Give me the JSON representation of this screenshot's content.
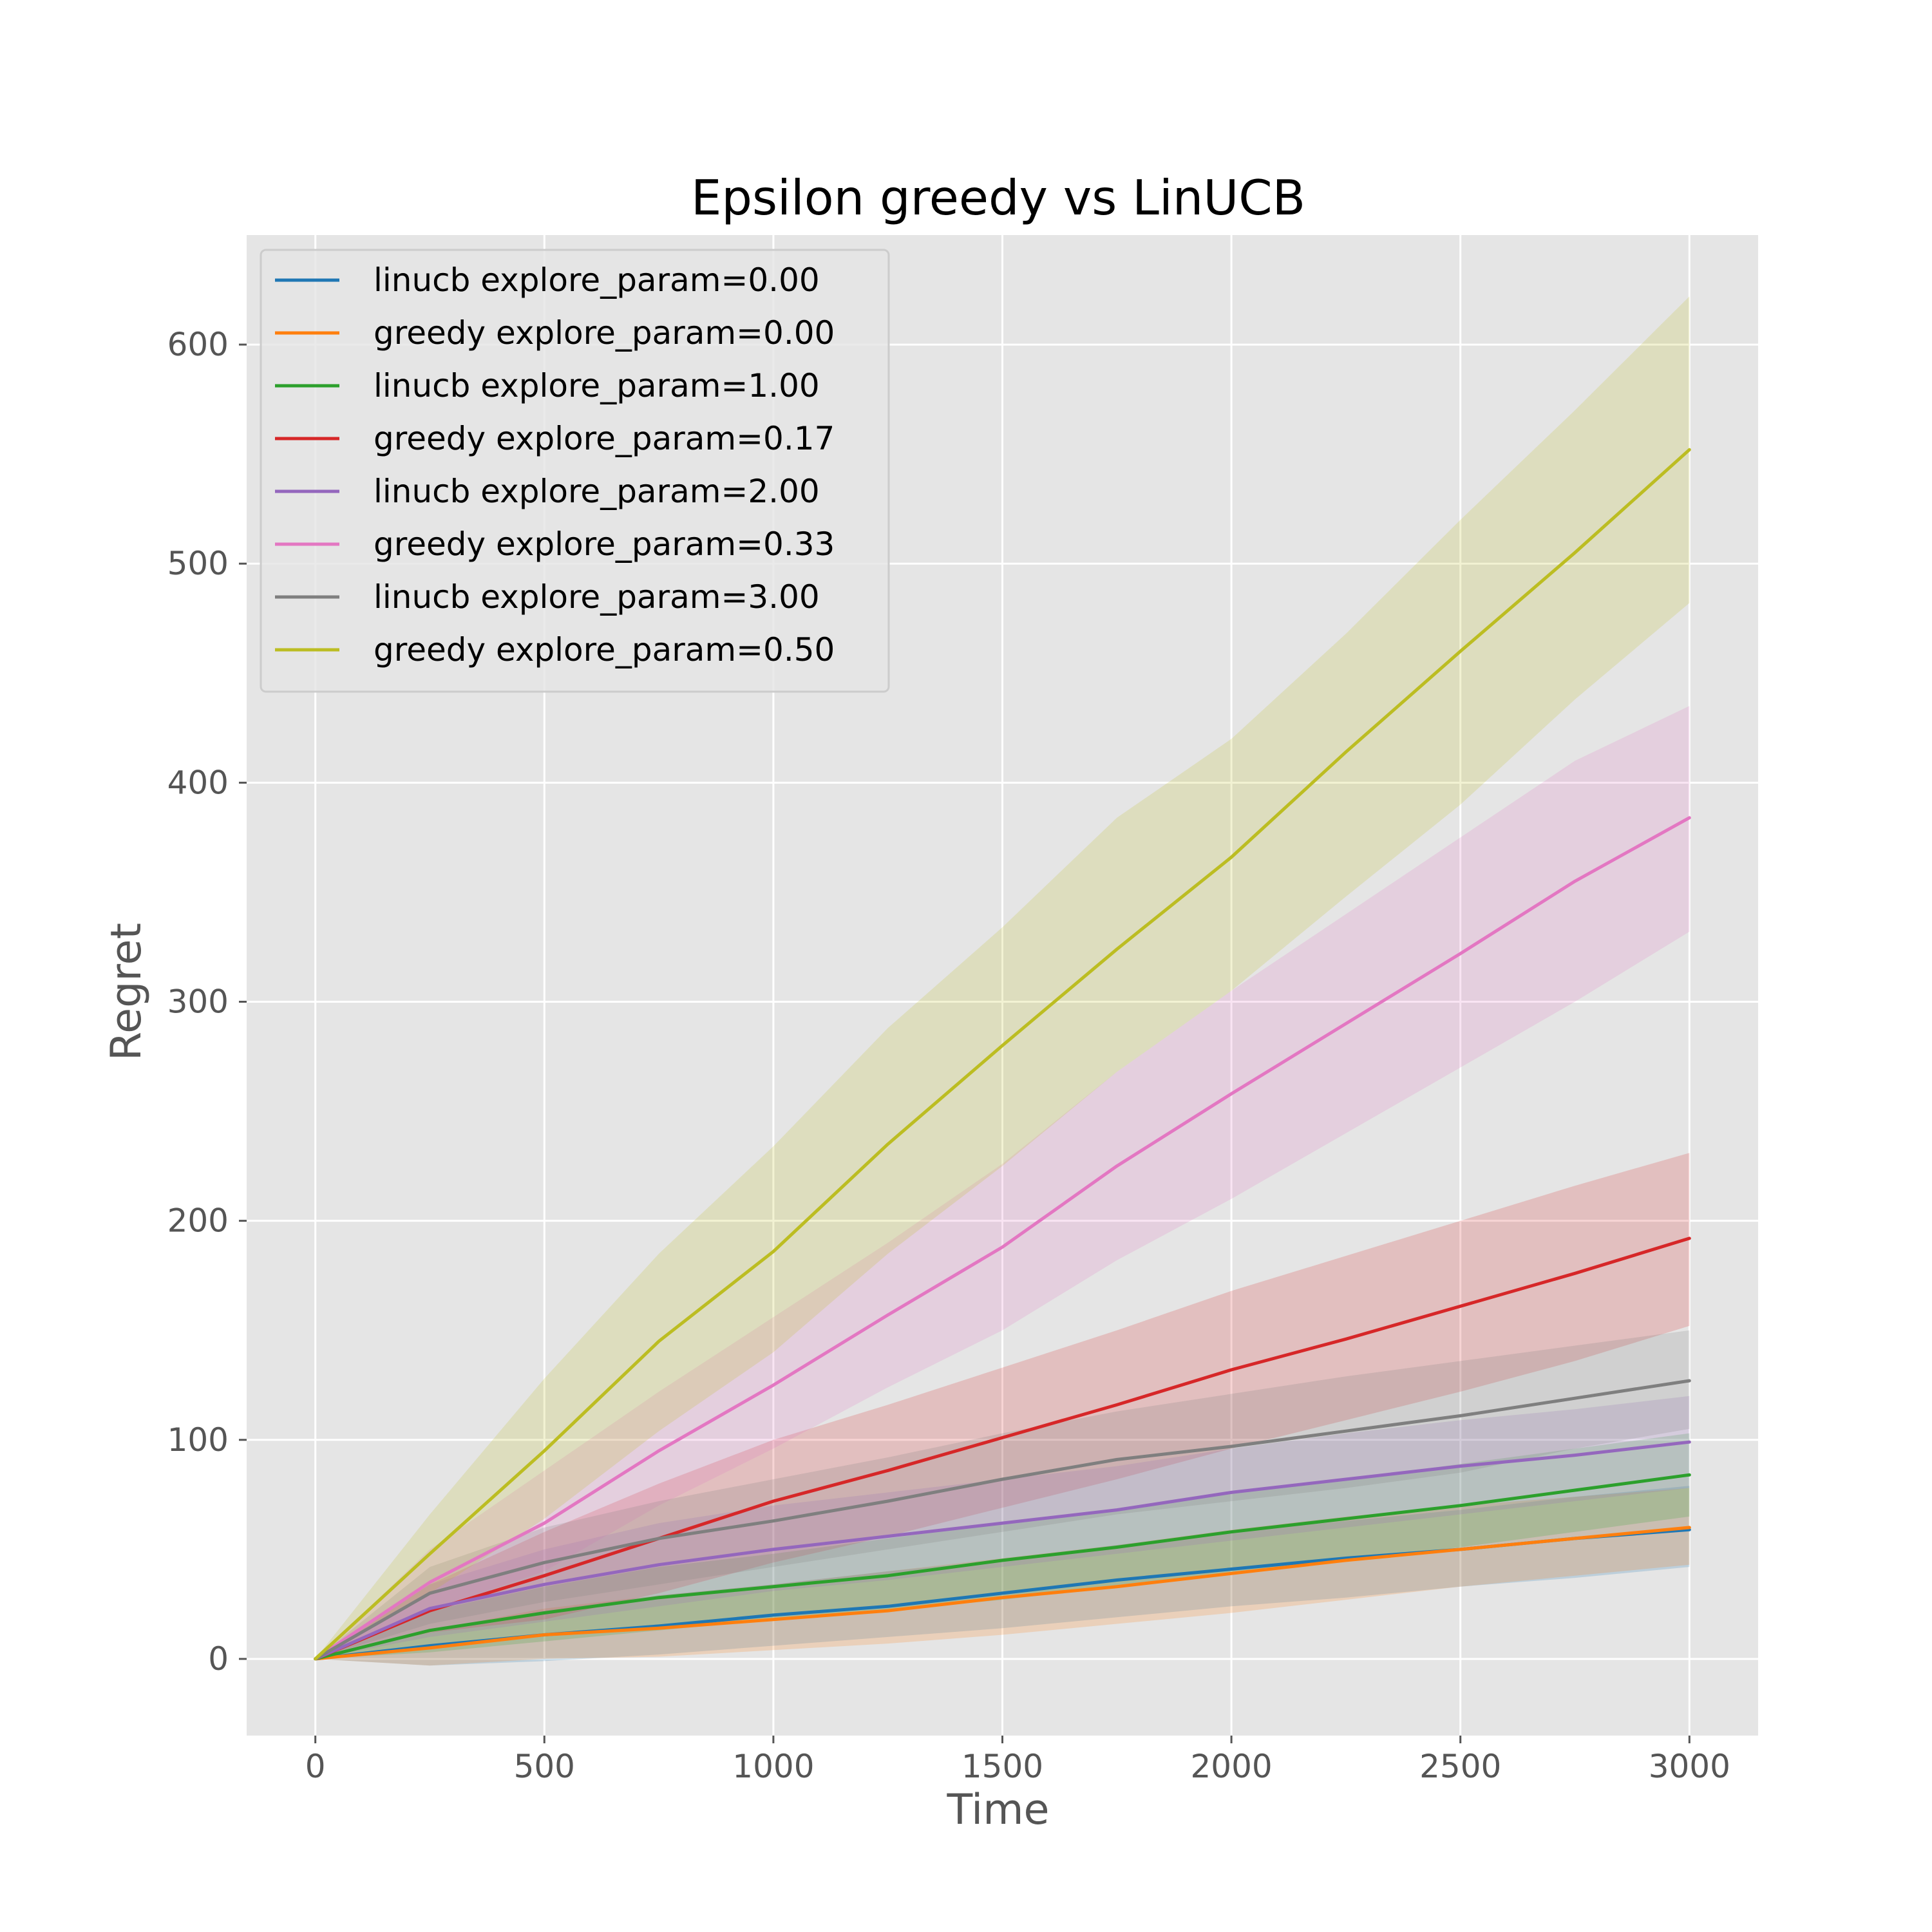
{
  "chart_data": {
    "type": "line",
    "title": "Epsilon greedy vs LinUCB",
    "xlabel": "Time",
    "ylabel": "Regret",
    "xlim": [
      -150,
      3150
    ],
    "ylim": [
      -35,
      650
    ],
    "xticks": [
      0,
      500,
      1000,
      1500,
      2000,
      2500,
      3000
    ],
    "xtick_labels": [
      "0",
      "500",
      "1000",
      "1500",
      "2000",
      "2500",
      "3000"
    ],
    "yticks": [
      0,
      100,
      200,
      300,
      400,
      500,
      600
    ],
    "ytick_labels": [
      "0",
      "100",
      "200",
      "300",
      "400",
      "500",
      "600"
    ],
    "grid": true,
    "legend_position": "top-left",
    "x": [
      0,
      250,
      500,
      750,
      1000,
      1250,
      1500,
      1750,
      2000,
      2250,
      2500,
      2750,
      3000
    ],
    "series": [
      {
        "name": "linucb explore_param=0.00",
        "color": "#1f77b4",
        "values": [
          0,
          6,
          11,
          15,
          20,
          24,
          30,
          36,
          41,
          46,
          50,
          55,
          59
        ],
        "lower": [
          0,
          -3,
          -1,
          2,
          6,
          10,
          14,
          19,
          24,
          28,
          33,
          37,
          42
        ],
        "upper": [
          0,
          12,
          22,
          29,
          34,
          40,
          45,
          52,
          58,
          63,
          68,
          74,
          79
        ]
      },
      {
        "name": "greedy explore_param=0.00",
        "color": "#ff7f0e",
        "values": [
          0,
          5,
          11,
          14,
          18,
          22,
          28,
          33,
          39,
          45,
          50,
          55,
          60
        ],
        "lower": [
          0,
          -3,
          0,
          1,
          4,
          7,
          11,
          16,
          21,
          27,
          33,
          38,
          43
        ],
        "upper": [
          0,
          13,
          23,
          29,
          34,
          40,
          46,
          52,
          59,
          65,
          70,
          74,
          78
        ]
      },
      {
        "name": "linucb explore_param=1.00",
        "color": "#2ca02c",
        "values": [
          0,
          13,
          21,
          28,
          33,
          38,
          45,
          51,
          58,
          64,
          70,
          77,
          84
        ],
        "lower": [
          0,
          3,
          8,
          13,
          18,
          22,
          27,
          33,
          39,
          45,
          51,
          58,
          65
        ],
        "upper": [
          0,
          22,
          33,
          42,
          48,
          55,
          62,
          68,
          76,
          82,
          89,
          96,
          103
        ]
      },
      {
        "name": "greedy explore_param=0.17",
        "color": "#d62728",
        "values": [
          0,
          22,
          38,
          55,
          72,
          86,
          101,
          116,
          132,
          146,
          161,
          176,
          192
        ],
        "lower": [
          0,
          12,
          18,
          30,
          44,
          56,
          69,
          82,
          96,
          109,
          122,
          136,
          152
        ],
        "upper": [
          0,
          34,
          58,
          80,
          100,
          116,
          133,
          150,
          168,
          184,
          200,
          216,
          231
        ]
      },
      {
        "name": "linucb explore_param=2.00",
        "color": "#9467bd",
        "values": [
          0,
          23,
          34,
          43,
          50,
          56,
          62,
          68,
          76,
          82,
          88,
          93,
          99
        ],
        "lower": [
          0,
          10,
          17,
          24,
          31,
          36,
          42,
          48,
          54,
          60,
          66,
          72,
          78
        ],
        "upper": [
          0,
          34,
          50,
          62,
          70,
          76,
          82,
          88,
          96,
          103,
          109,
          114,
          120
        ]
      },
      {
        "name": "greedy explore_param=0.33",
        "color": "#e377c2",
        "values": [
          0,
          35,
          62,
          95,
          125,
          157,
          188,
          225,
          258,
          290,
          322,
          355,
          384
        ],
        "lower": [
          0,
          22,
          40,
          70,
          96,
          124,
          150,
          182,
          210,
          240,
          270,
          300,
          332
        ],
        "upper": [
          0,
          50,
          86,
          122,
          156,
          190,
          226,
          268,
          305,
          340,
          375,
          410,
          435
        ]
      },
      {
        "name": "linucb explore_param=3.00",
        "color": "#7f7f7f",
        "values": [
          0,
          30,
          44,
          55,
          63,
          72,
          82,
          91,
          97,
          104,
          111,
          119,
          127
        ],
        "lower": [
          0,
          16,
          26,
          34,
          42,
          50,
          58,
          66,
          72,
          78,
          85,
          96,
          105
        ],
        "upper": [
          0,
          42,
          60,
          72,
          82,
          92,
          103,
          113,
          121,
          129,
          136,
          143,
          150
        ]
      },
      {
        "name": "greedy explore_param=0.50",
        "color": "#bcbd22",
        "values": [
          0,
          48,
          95,
          145,
          186,
          235,
          280,
          324,
          366,
          414,
          460,
          505,
          552
        ],
        "lower": [
          0,
          30,
          64,
          104,
          140,
          185,
          225,
          268,
          305,
          348,
          390,
          438,
          482
        ],
        "upper": [
          0,
          66,
          128,
          185,
          234,
          288,
          334,
          384,
          420,
          468,
          520,
          570,
          622
        ]
      }
    ]
  }
}
